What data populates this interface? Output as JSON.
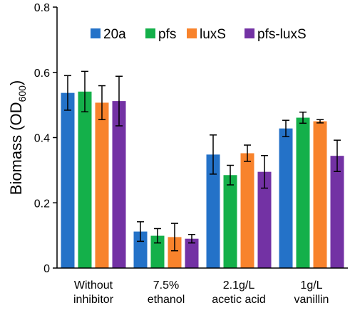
{
  "chart_data": {
    "type": "bar",
    "categories": [
      [
        "Without",
        "inhibitor"
      ],
      [
        "7.5%",
        "ethanol"
      ],
      [
        "2.1g/L",
        "acetic acid"
      ],
      [
        "1g/L",
        "vanillin"
      ]
    ],
    "series": [
      {
        "name": "20a",
        "color": "#2472C8",
        "values": [
          0.537,
          0.112,
          0.348,
          0.428
        ],
        "errors": [
          0.053,
          0.03,
          0.06,
          0.025
        ]
      },
      {
        "name": "pfs",
        "color": "#14B04A",
        "values": [
          0.541,
          0.099,
          0.285,
          0.461
        ],
        "errors": [
          0.062,
          0.022,
          0.03,
          0.017
        ]
      },
      {
        "name": "luxS",
        "color": "#F8832C",
        "values": [
          0.507,
          0.095,
          0.352,
          0.45
        ],
        "errors": [
          0.052,
          0.042,
          0.025,
          0.005
        ]
      },
      {
        "name": "pfs-luxS",
        "color": "#7332A4",
        "values": [
          0.512,
          0.09,
          0.295,
          0.344
        ],
        "errors": [
          0.076,
          0.013,
          0.05,
          0.048
        ]
      }
    ],
    "ylabel_main": "Biomass (OD",
    "ylabel_sub": "600",
    "ylabel_close": ")",
    "ylim": [
      0,
      0.8
    ],
    "yticks": [
      "0",
      "0.2",
      "0.4",
      "0.6",
      "0.8"
    ],
    "yticks_values": [
      0,
      0.2,
      0.4,
      0.6,
      0.8
    ],
    "grid": false,
    "legend": "top"
  }
}
